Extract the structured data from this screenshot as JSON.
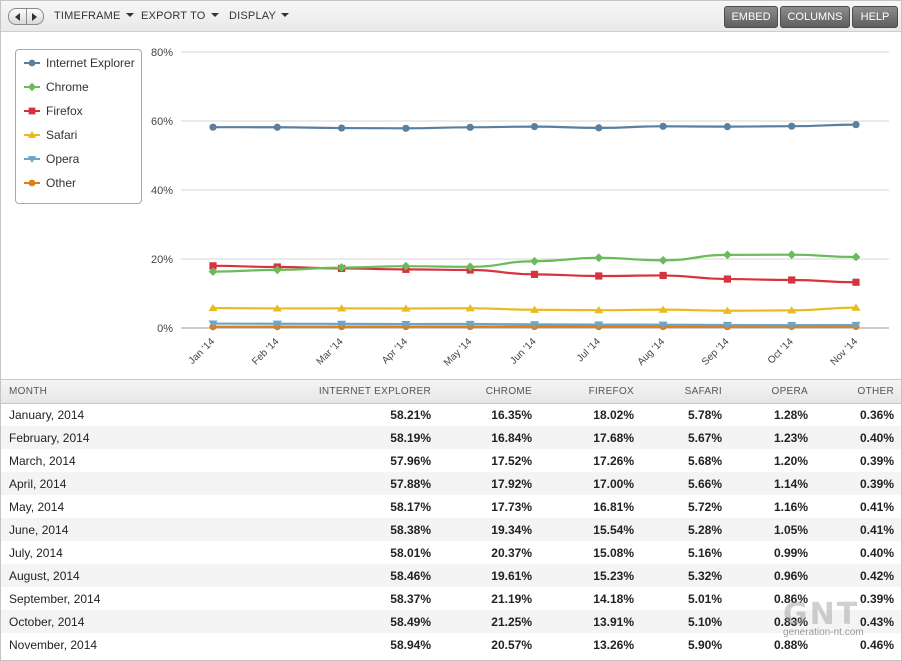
{
  "toolbar": {
    "menus": [
      "TIMEFRAME",
      "EXPORT TO",
      "DISPLAY"
    ],
    "buttons": [
      "EMBED",
      "COLUMNS",
      "HELP"
    ]
  },
  "watermark": {
    "logo": "GNT",
    "site": "generation-nt.com"
  },
  "colors": {
    "Internet Explorer": "#5b7f9e",
    "Chrome": "#6cbb5a",
    "Firefox": "#d6333f",
    "Safari": "#e8bb21",
    "Opera": "#6aa6c8",
    "Other": "#e07d19"
  },
  "chart_data": {
    "type": "line",
    "title": "",
    "xlabel": "",
    "ylabel": "",
    "categories": [
      "Jan '14",
      "Feb '14",
      "Mar '14",
      "Apr '14",
      "May '14",
      "Jun '14",
      "Jul '14",
      "Aug '14",
      "Sep '14",
      "Oct '14",
      "Nov '14"
    ],
    "ylim": [
      0,
      80
    ],
    "yticks": [
      "0%",
      "20%",
      "40%",
      "60%",
      "80%"
    ],
    "grid": true,
    "legend_position": "top-left",
    "series": [
      {
        "name": "Internet Explorer",
        "marker": "circle",
        "values": [
          58.21,
          58.19,
          57.96,
          57.88,
          58.17,
          58.38,
          58.01,
          58.46,
          58.37,
          58.49,
          58.94
        ]
      },
      {
        "name": "Chrome",
        "marker": "diamond",
        "values": [
          16.35,
          16.84,
          17.52,
          17.92,
          17.73,
          19.34,
          20.37,
          19.61,
          21.19,
          21.25,
          20.57
        ]
      },
      {
        "name": "Firefox",
        "marker": "square",
        "values": [
          18.02,
          17.68,
          17.26,
          17.0,
          16.81,
          15.54,
          15.08,
          15.23,
          14.18,
          13.91,
          13.26
        ]
      },
      {
        "name": "Safari",
        "marker": "triangle-up",
        "values": [
          5.78,
          5.67,
          5.68,
          5.66,
          5.72,
          5.28,
          5.16,
          5.32,
          5.01,
          5.1,
          5.9
        ]
      },
      {
        "name": "Opera",
        "marker": "triangle-down",
        "values": [
          1.28,
          1.23,
          1.2,
          1.14,
          1.16,
          1.05,
          0.99,
          0.96,
          0.86,
          0.83,
          0.88
        ]
      },
      {
        "name": "Other",
        "marker": "circle",
        "values": [
          0.36,
          0.4,
          0.39,
          0.39,
          0.41,
          0.41,
          0.4,
          0.42,
          0.39,
          0.43,
          0.46
        ]
      }
    ]
  },
  "table": {
    "headers": [
      "MONTH",
      "INTERNET EXPLORER",
      "CHROME",
      "FIREFOX",
      "SAFARI",
      "OPERA",
      "OTHER"
    ],
    "rows": [
      [
        "January, 2014",
        "58.21%",
        "16.35%",
        "18.02%",
        "5.78%",
        "1.28%",
        "0.36%"
      ],
      [
        "February, 2014",
        "58.19%",
        "16.84%",
        "17.68%",
        "5.67%",
        "1.23%",
        "0.40%"
      ],
      [
        "March, 2014",
        "57.96%",
        "17.52%",
        "17.26%",
        "5.68%",
        "1.20%",
        "0.39%"
      ],
      [
        "April, 2014",
        "57.88%",
        "17.92%",
        "17.00%",
        "5.66%",
        "1.14%",
        "0.39%"
      ],
      [
        "May, 2014",
        "58.17%",
        "17.73%",
        "16.81%",
        "5.72%",
        "1.16%",
        "0.41%"
      ],
      [
        "June, 2014",
        "58.38%",
        "19.34%",
        "15.54%",
        "5.28%",
        "1.05%",
        "0.41%"
      ],
      [
        "July, 2014",
        "58.01%",
        "20.37%",
        "15.08%",
        "5.16%",
        "0.99%",
        "0.40%"
      ],
      [
        "August, 2014",
        "58.46%",
        "19.61%",
        "15.23%",
        "5.32%",
        "0.96%",
        "0.42%"
      ],
      [
        "September, 2014",
        "58.37%",
        "21.19%",
        "14.18%",
        "5.01%",
        "0.86%",
        "0.39%"
      ],
      [
        "October, 2014",
        "58.49%",
        "21.25%",
        "13.91%",
        "5.10%",
        "0.83%",
        "0.43%"
      ],
      [
        "November, 2014",
        "58.94%",
        "20.57%",
        "13.26%",
        "5.90%",
        "0.88%",
        "0.46%"
      ]
    ]
  }
}
